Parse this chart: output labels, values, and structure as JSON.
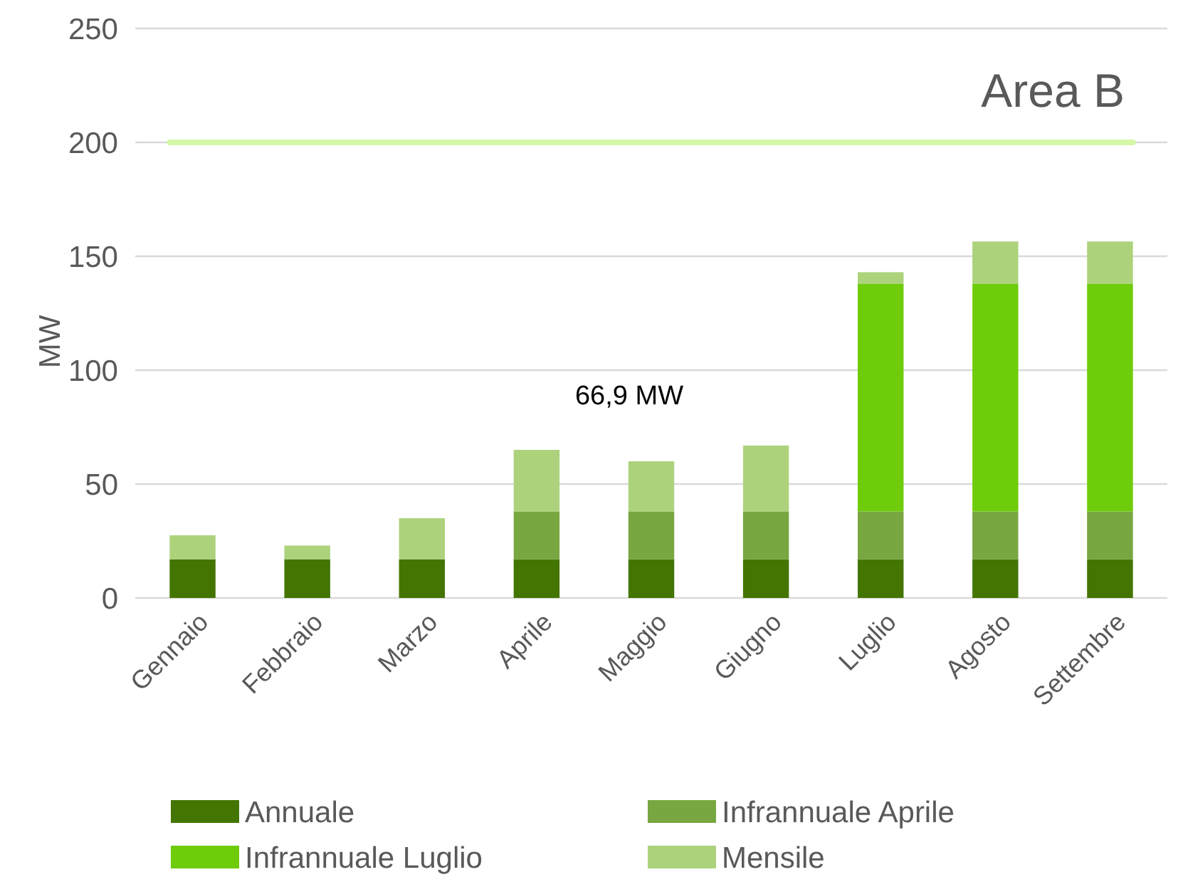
{
  "chart_data": {
    "type": "bar",
    "stacked": true,
    "ylabel": "MW",
    "categories": [
      "Gennaio",
      "Febbraio",
      "Marzo",
      "Aprile",
      "Maggio",
      "Giugno",
      "Luglio",
      "Agosto",
      "Settembre"
    ],
    "series": [
      {
        "name": "Annuale",
        "color": "#437500",
        "values": [
          17,
          17,
          17,
          17,
          17,
          17,
          17,
          17,
          17
        ]
      },
      {
        "name": "Infrannuale Aprile",
        "color": "#78a640",
        "values": [
          null,
          null,
          null,
          21,
          21,
          21,
          21,
          21,
          21
        ]
      },
      {
        "name": "Infrannuale Luglio",
        "color": "#6ecc0a",
        "values": [
          null,
          null,
          null,
          null,
          null,
          null,
          100,
          100,
          100
        ]
      },
      {
        "name": "Mensile",
        "color": "#acd37c",
        "values": [
          10.5,
          6,
          18,
          27,
          22,
          28.9,
          5,
          18.5,
          18.5
        ]
      }
    ],
    "ylim": [
      0,
      250
    ],
    "yticks": [
      0,
      50,
      100,
      150,
      200,
      250
    ],
    "grid": "y",
    "legend": "bottom",
    "ref_lines": [
      {
        "axis": "y",
        "value": 200,
        "color": "#d4f7a8"
      }
    ],
    "annotations": [
      "Area B",
      "66,9 MW"
    ]
  }
}
